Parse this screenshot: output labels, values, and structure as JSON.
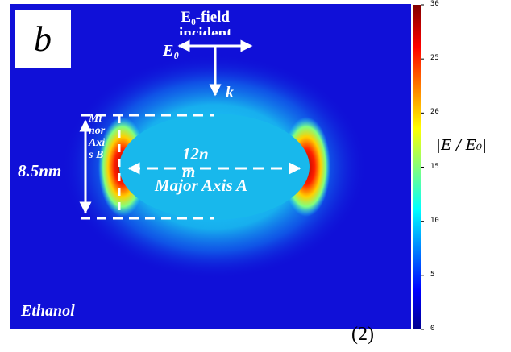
{
  "panel_label": "b",
  "incident": {
    "line1": "E₀-field",
    "line2": "incident",
    "e0_label": "E₀",
    "k_label": "k"
  },
  "annotations": {
    "minor_axis_text": "Mi\nnor\nAxi\ns B",
    "minor_axis_value": "8.5nm",
    "major_axis_value": "12n\nm",
    "major_axis_text": "Major Axis A",
    "medium": "Ethanol"
  },
  "colorbar": {
    "title": "|E / E₀|",
    "min": 0,
    "max": 30,
    "ticks": [
      "0",
      "5",
      "10",
      "15",
      "20",
      "25",
      "30"
    ],
    "colors": [
      "#00008f",
      "#0000ff",
      "#0080ff",
      "#00ffff",
      "#80ff80",
      "#ffff00",
      "#ff8000",
      "#ff0000",
      "#800000"
    ]
  },
  "footer_label": "(2)",
  "colors": {
    "background_field": "#1010d8",
    "particle": "#18b8ec"
  }
}
